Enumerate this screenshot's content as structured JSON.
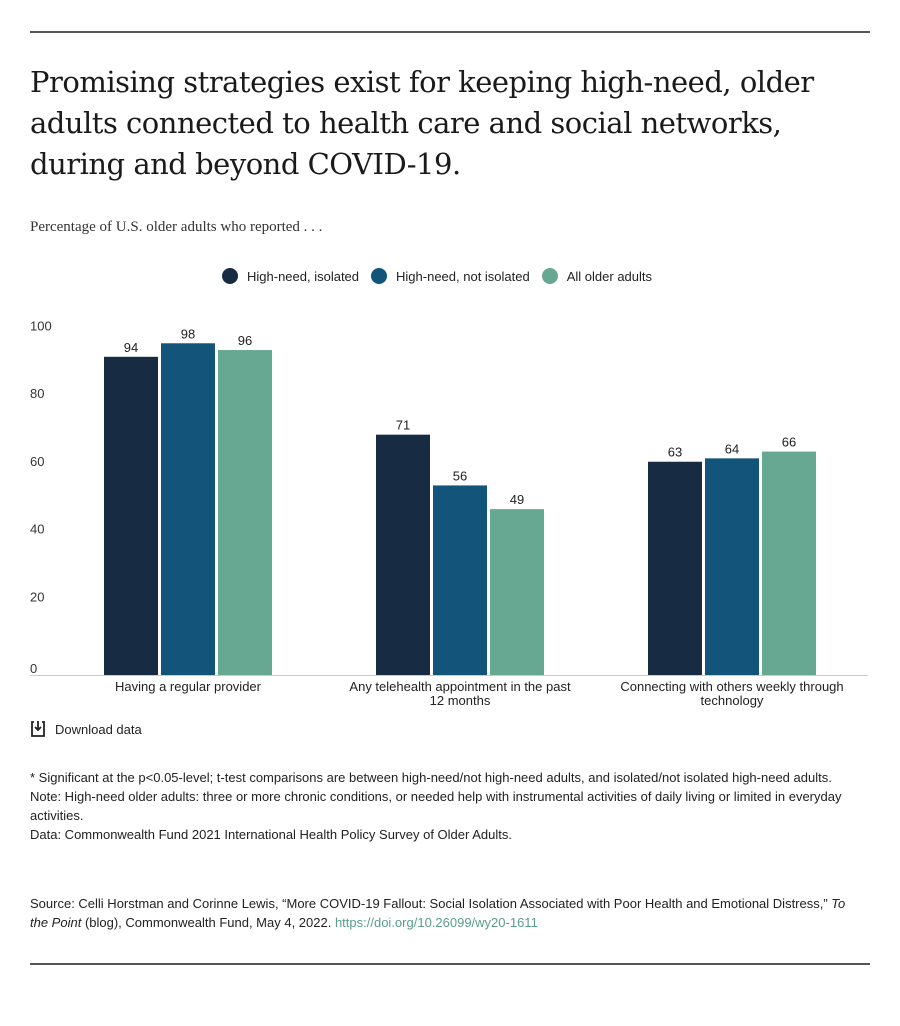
{
  "title": "Promising strategies exist for keeping high-need, older adults connected to health care and social networks, during and beyond COVID-19.",
  "subtitle": "Percentage of U.S. older adults who reported . . .",
  "chart_data": {
    "type": "bar",
    "categories": [
      "Having a regular provider",
      "Any telehealth appointment in the past 12 months",
      "Connecting with others weekly through technology"
    ],
    "series": [
      {
        "name": "High-need, isolated",
        "color": "#172b42",
        "values": [
          94,
          71,
          63
        ]
      },
      {
        "name": "High-need, not isolated",
        "color": "#12547a",
        "values": [
          98,
          56,
          64
        ]
      },
      {
        "name": "All older adults",
        "color": "#66a892",
        "values": [
          96,
          49,
          66
        ]
      }
    ],
    "yticks": [
      0,
      20,
      40,
      60,
      80,
      100
    ],
    "ylim": [
      0,
      100
    ],
    "grid": false,
    "legend": "top-center",
    "data_labels": true
  },
  "download_label": "Download data",
  "notes": [
    "* Significant at the p<0.05-level; t-test comparisons are between high-need/not high-need adults, and isolated/not isolated high-need adults.",
    "Note: High-need older adults: three or more chronic conditions, or needed help with instrumental activities of daily living or limited in everyday activities.",
    "Data: Commonwealth Fund 2021 International Health Policy Survey of Older Adults."
  ],
  "source": {
    "prefix": "Source: Celli Horstman and Corinne Lewis, “More COVID-19 Fallout: Social Isolation Associated with Poor Health and Emotional Distress,” ",
    "italic": "To the Point",
    "suffix": " (blog), Commonwealth Fund, May 4, 2022. ",
    "link": "https://doi.org/10.26099/wy20-1611"
  }
}
